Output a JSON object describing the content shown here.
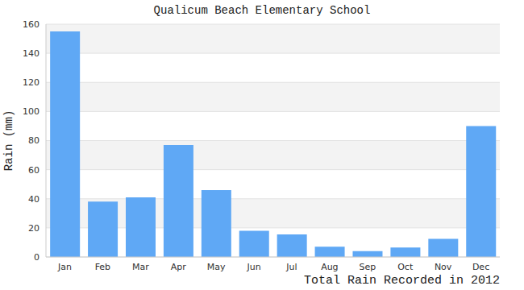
{
  "chart_data": {
    "type": "bar",
    "title": "Qualicum Beach Elementary School",
    "ylabel": "Rain (mm)",
    "xlabel": "Total Rain Recorded in 2012",
    "categories": [
      "Jan",
      "Feb",
      "Mar",
      "Apr",
      "May",
      "Jun",
      "Jul",
      "Aug",
      "Sep",
      "Oct",
      "Nov",
      "Dec"
    ],
    "values": [
      155,
      38,
      41,
      77,
      46,
      18,
      15.5,
      7,
      4,
      6.5,
      12.5,
      90
    ],
    "color": "#5fa8f5",
    "ylim": [
      0,
      160
    ],
    "yticks": [
      0,
      20,
      40,
      60,
      80,
      100,
      120,
      140,
      160
    ],
    "grid": true
  }
}
